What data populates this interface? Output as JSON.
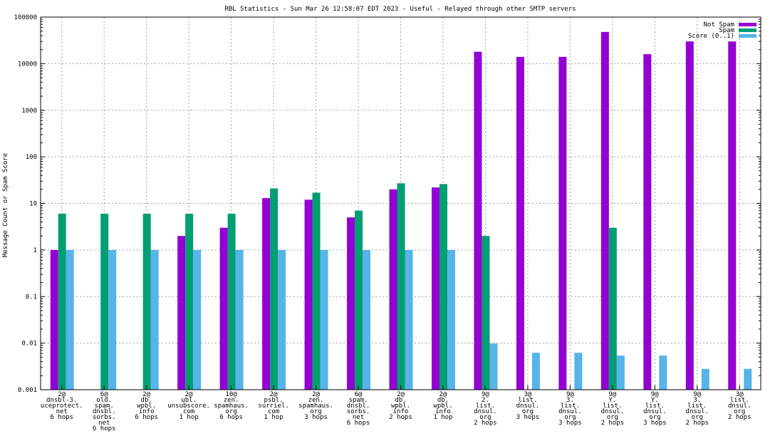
{
  "chart_data": {
    "type": "bar",
    "title": "RBL Statistics - Sun Mar 26 12:58:07 EDT 2023 - Useful - Relayed through other SMTP servers",
    "xlabel": "",
    "ylabel": "Message Count or Spam Score",
    "yscale": "log",
    "ylim": [
      0.001,
      100000
    ],
    "yticks": [
      "0.001",
      "0.01",
      "0.1",
      "1",
      "10",
      "100",
      "1000",
      "10000",
      "100000"
    ],
    "legend_position": "top-right",
    "categories": [
      [
        "2@",
        "dnsbl-3.",
        "uceprotect.",
        "net",
        "6 hops"
      ],
      [
        "6@",
        "old.",
        "spam.",
        "dnsbl.",
        "sorbs.",
        "net",
        "6 hops"
      ],
      [
        "2@",
        "db.",
        "wpbl.",
        "info",
        "6 hops"
      ],
      [
        "2@",
        "ubl.",
        "unsubscore.",
        "com",
        "1 hop"
      ],
      [
        "10@",
        "zen.",
        "spamhaus.",
        "org",
        "6 hops"
      ],
      [
        "2@",
        "psbl.",
        "surriel.",
        "com",
        "1 hop"
      ],
      [
        "2@",
        "zen.",
        "spamhaus.",
        "org",
        "3 hops"
      ],
      [
        "6@",
        "spam.",
        "dnsbl.",
        "sorbs.",
        "net",
        "6 hops"
      ],
      [
        "2@",
        "db.",
        "wpbl.",
        "info",
        "2 hops"
      ],
      [
        "2@",
        "db.",
        "wpbl.",
        "info",
        "1 hop"
      ],
      [
        "9@",
        "2.",
        "list.",
        "dnsul.",
        "org",
        "2 hops"
      ],
      [
        "3@",
        "list.",
        "dnsul.",
        "org",
        "3 hops"
      ],
      [
        "9@",
        "3.",
        "list.",
        "dnsul.",
        "org",
        "3 hops"
      ],
      [
        "9@",
        "Y.",
        "list.",
        "dnsul.",
        "org",
        "2 hops"
      ],
      [
        "9@",
        "Y.",
        "list.",
        "dnsul.",
        "org",
        "3 hops"
      ],
      [
        "9@",
        "3.",
        "list.",
        "dnsul.",
        "org",
        "2 hops"
      ],
      [
        "3@",
        "list.",
        "dnsul.",
        "org",
        "2 hops"
      ]
    ],
    "series": [
      {
        "name": "Not Spam",
        "color": "#9400d3",
        "values": [
          1,
          null,
          null,
          2,
          3,
          13,
          12,
          5,
          20,
          22,
          18000,
          14000,
          14000,
          48000,
          16000,
          30000,
          30000
        ]
      },
      {
        "name": "Spam",
        "color": "#009e73",
        "values": [
          6,
          6,
          6,
          6,
          6,
          21,
          17,
          7,
          27,
          26,
          2,
          null,
          null,
          3,
          null,
          null,
          null
        ]
      },
      {
        "name": "Score (0..1)",
        "color": "#56b4e9",
        "values": [
          1,
          1,
          1,
          1,
          1,
          1,
          1,
          1,
          1,
          1,
          0.0098,
          0.0062,
          0.0062,
          0.0054,
          0.0054,
          0.0028,
          0.0028
        ]
      }
    ]
  }
}
